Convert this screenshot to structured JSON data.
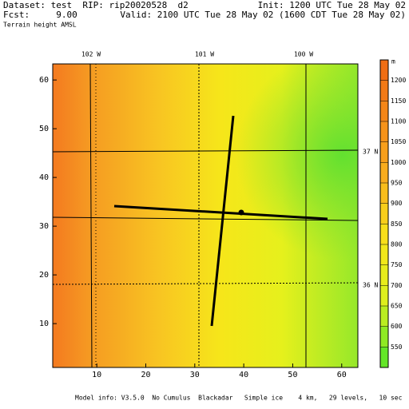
{
  "header": {
    "dataset": "Dataset: test  RIP: rip20020528  d2",
    "fcst": "Fcst:     9.00",
    "field": "Terrain height AMSL",
    "init": "Init: 1200 UTC Tue 28 May 02",
    "valid": "Valid: 2100 UTC Tue 28 May 02 (1600 CDT Tue 28 May 02)"
  },
  "map": {
    "xlim": [
      1,
      63.3
    ],
    "ylim": [
      1,
      63.3
    ],
    "xticks": [
      10,
      20,
      30,
      40,
      50,
      60
    ],
    "yticks": [
      10,
      20,
      30,
      40,
      50,
      60
    ],
    "lon_labels": [
      "102 W",
      "101 W",
      "100 W"
    ],
    "lat_labels": [
      "37 N",
      "36 N"
    ]
  },
  "colorbar": {
    "unit": "m",
    "levels": [
      1200,
      1150,
      1100,
      1050,
      1000,
      950,
      900,
      850,
      800,
      750,
      700,
      650,
      600,
      550
    ]
  },
  "footer": "Model info: V3.5.0  No Cumulus  Blackadar   Simple ice    4 km,   29 levels,   10 sec"
}
